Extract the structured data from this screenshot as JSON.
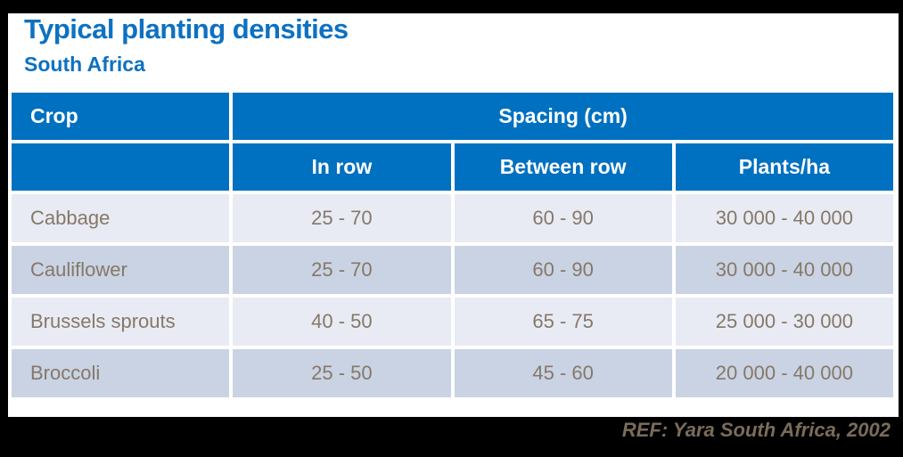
{
  "slide": {
    "title": "Typical planting densities",
    "subtitle": "South Africa",
    "reference": "REF: Yara South Africa, 2002"
  },
  "table": {
    "corner_header": "Crop",
    "group_header": "Spacing (cm)",
    "sub_headers": [
      "In row",
      "Between row",
      "Plants/ha"
    ],
    "rows": [
      {
        "crop": "Cabbage",
        "in_row": "25 - 70",
        "between_row": "60 - 90",
        "plants_ha": "30 000 - 40 000"
      },
      {
        "crop": "Cauliflower",
        "in_row": "25 - 70",
        "between_row": "60 - 90",
        "plants_ha": "30 000 - 40 000"
      },
      {
        "crop": "Brussels sprouts",
        "in_row": "40 - 50",
        "between_row": "65 - 75",
        "plants_ha": "25 000 - 30 000"
      },
      {
        "crop": "Broccoli",
        "in_row": "25 - 50",
        "between_row": "45 - 60",
        "plants_ha": "20 000 - 40 000"
      }
    ]
  },
  "colors": {
    "frame_black": "#000000",
    "title_blue": "#0d71c2",
    "header_blue": "#0070c0",
    "row_light": "#e8ebf4",
    "row_dark": "#c9d3e3",
    "data_text": "#867867",
    "reference_text": "#7a6c5b"
  }
}
